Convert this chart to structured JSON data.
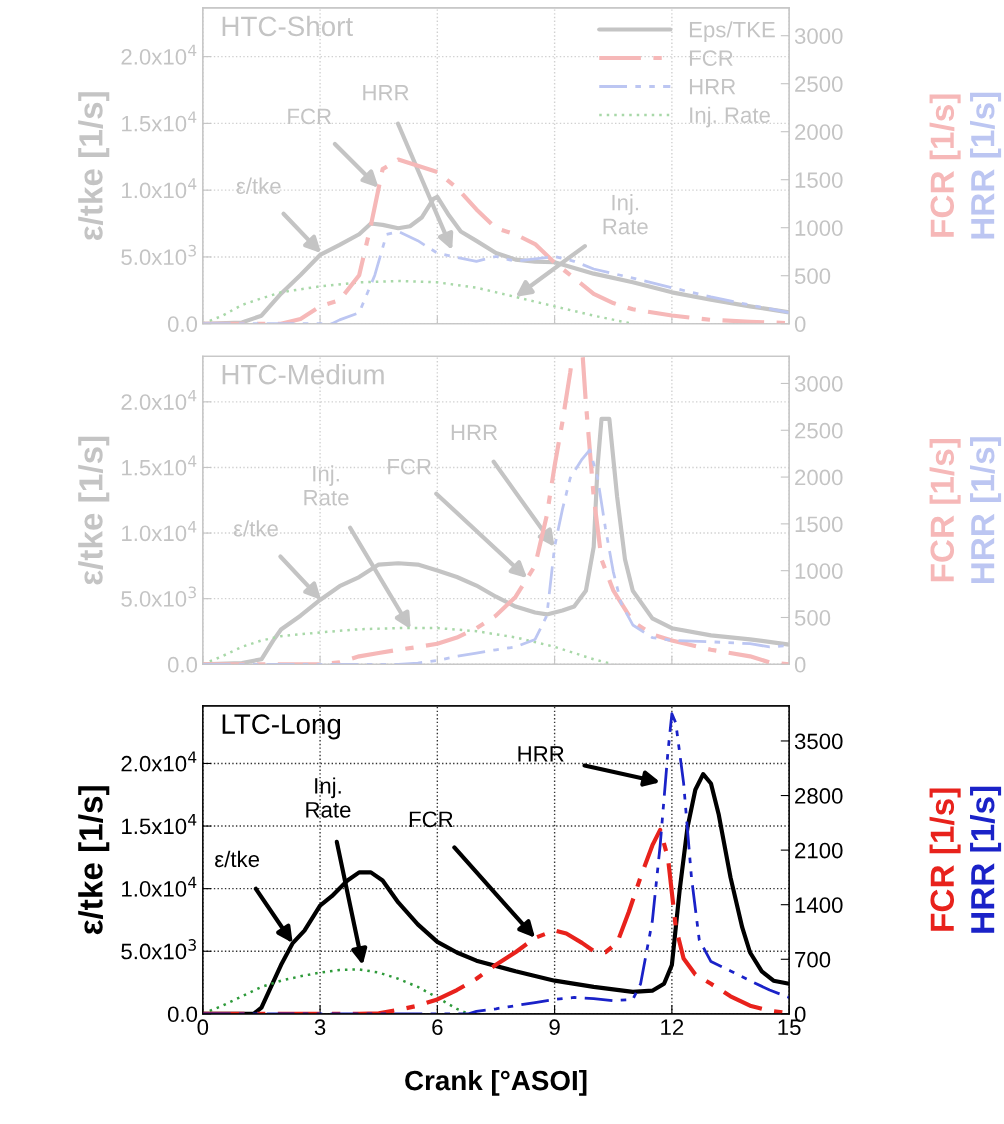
{
  "chart_data": [
    {
      "type": "line",
      "title": "HTC-Short",
      "ylabel": "ε/tke [1/s]",
      "y2label": "FCR [1/s]",
      "y3label": "HRR [1/s]",
      "xlim": [
        0,
        15
      ],
      "xticks": [
        0,
        3,
        6,
        9,
        12,
        15
      ],
      "ylim": [
        0,
        23650
      ],
      "yticks": [
        {
          "value": 0,
          "label": "0.0"
        },
        {
          "value": 5000,
          "label": "5.0x10$^{3}$"
        },
        {
          "value": 10000,
          "label": "1.0x10$^{4}$"
        },
        {
          "value": 15000,
          "label": "1.5x10$^{4}$"
        },
        {
          "value": 20000,
          "label": "2.0x10$^{4}$"
        }
      ],
      "y2lim": [
        0,
        3290
      ],
      "y2ticks": [
        0,
        500,
        1000,
        1500,
        2000,
        2500,
        3000
      ],
      "grid": true,
      "legend": "top right",
      "tick_labels": "y",
      "series": [
        {
          "name": "Eps/TKE",
          "color": "#c4c4c4",
          "line_style": "solid",
          "x": [
            0,
            1,
            1.5,
            2,
            2.5,
            3,
            3.5,
            4,
            4.3,
            4.6,
            5,
            5.3,
            5.6,
            5.9,
            6,
            6.3,
            6.6,
            7,
            7.5,
            8,
            8.5,
            9,
            10,
            11,
            12,
            13,
            14,
            15
          ],
          "values": [
            0,
            93,
            600,
            2250,
            3650,
            5150,
            5900,
            6700,
            7500,
            7400,
            7150,
            7300,
            7950,
            9350,
            9500,
            8100,
            6900,
            6200,
            5300,
            4800,
            4650,
            4600,
            3750,
            3100,
            2350,
            1800,
            1300,
            850
          ]
        },
        {
          "name": "FCR",
          "color": "#f6b8b8",
          "line_style": "dashdot",
          "axis": "y2",
          "x": [
            0,
            2,
            2.5,
            3,
            3.5,
            4,
            4.3,
            4.6,
            5,
            5.5,
            6,
            6.5,
            7,
            7.5,
            8,
            8.5,
            9,
            9.5,
            10,
            10.5,
            11,
            12,
            13,
            14,
            15
          ],
          "values": [
            0,
            0,
            50,
            180,
            245,
            505,
            1025,
            1610,
            1710,
            1645,
            1580,
            1415,
            1190,
            995,
            930,
            830,
            635,
            475,
            310,
            215,
            150,
            85,
            40,
            20,
            6
          ]
        },
        {
          "name": "HRR",
          "color": "#bcc6f2",
          "line_style": "dashdotdot",
          "axis": "y2",
          "x": [
            0,
            3.3,
            3.5,
            4,
            4.4,
            4.7,
            5,
            5.5,
            6,
            6.5,
            7,
            7.5,
            8,
            9,
            9.5,
            10,
            11,
            12,
            13,
            14,
            15
          ],
          "values": [
            0,
            0,
            40,
            115,
            505,
            930,
            960,
            865,
            735,
            690,
            650,
            700,
            650,
            700,
            650,
            570,
            475,
            375,
            280,
            195,
            115
          ]
        },
        {
          "name": "Inj. Rate",
          "color": "#a8d8a8",
          "line_style": "dotted",
          "x": [
            0,
            0.5,
            1,
            1.5,
            2,
            3,
            4,
            5,
            6,
            7,
            8,
            9,
            10,
            11
          ],
          "values": [
            0,
            600,
            1400,
            1900,
            2350,
            2800,
            3100,
            3200,
            3100,
            2700,
            2000,
            1300,
            600,
            0
          ]
        }
      ],
      "annotations": [
        {
          "text": "ε/tke",
          "x": 3.03,
          "y": 5280
        },
        {
          "text": "FCR",
          "x": 4.5,
          "y": 10180
        },
        {
          "text": "HRR",
          "x": 6.38,
          "y": 5510
        },
        {
          "text": "Inj.\nRate",
          "x": 8,
          "y": 2000
        }
      ]
    },
    {
      "type": "line",
      "title": "HTC-Medium",
      "ylabel": "ε/tke [1/s]",
      "y2label": "FCR [1/s]",
      "y3label": "HRR [1/s]",
      "xlim": [
        0,
        15
      ],
      "xticks": [
        0,
        3,
        6,
        9,
        12,
        15
      ],
      "ylim": [
        0,
        23470
      ],
      "yticks": [
        {
          "value": 0,
          "label": "0.0"
        },
        {
          "value": 5000,
          "label": "5.0x10$^{3}$"
        },
        {
          "value": 10000,
          "label": "1.0x10$^{4}$"
        },
        {
          "value": 15000,
          "label": "1.5x10$^{4}$"
        },
        {
          "value": 20000,
          "label": "2.0x10$^{4}$"
        }
      ],
      "y2lim": [
        0,
        3290
      ],
      "y2ticks": [
        0,
        500,
        1000,
        1500,
        2000,
        2500,
        3000
      ],
      "grid": true,
      "tick_labels": "y",
      "series": [
        {
          "color": "#c4c4c4",
          "line_style": "solid",
          "x": [
            0,
            1,
            1.5,
            1.8,
            2,
            2.5,
            3,
            3.5,
            4,
            4.5,
            5,
            5.5,
            6,
            6.5,
            7,
            7.5,
            8,
            8.5,
            8.8,
            9.2,
            9.5,
            9.8,
            10,
            10.1,
            10.2,
            10.4,
            10.6,
            10.8,
            11,
            11.5,
            12,
            13,
            14,
            15
          ],
          "values": [
            0,
            95,
            380,
            1800,
            2650,
            3700,
            4900,
            5950,
            6650,
            7600,
            7700,
            7600,
            7150,
            6650,
            6000,
            5150,
            4400,
            3950,
            3800,
            4100,
            4400,
            5600,
            8950,
            15150,
            18700,
            18700,
            12750,
            8000,
            5600,
            3500,
            2750,
            2200,
            1900,
            1500
          ]
        },
        {
          "color": "#f6b8b8",
          "line_style": "dashdot",
          "axis": "y2",
          "x": [
            0,
            3,
            3.5,
            4,
            4.5,
            5,
            5.5,
            6,
            6.5,
            7,
            7.5,
            8,
            8.3,
            8.5,
            8.8,
            9,
            9.2,
            9.4,
            9.45,
            9.6,
            9.72,
            9.8,
            10,
            10.2,
            10.5,
            11,
            11.5,
            12,
            13,
            14,
            14.5,
            15
          ],
          "values": [
            0,
            0,
            20,
            85,
            120,
            155,
            185,
            220,
            285,
            385,
            520,
            720,
            920,
            1055,
            1590,
            2120,
            2590,
            3120,
            3280,
            null,
            3280,
            2790,
            1790,
            1120,
            790,
            455,
            320,
            255,
            155,
            85,
            20,
            0
          ]
        },
        {
          "color": "#bcc6f2",
          "line_style": "dashdotdot",
          "axis": "y2",
          "x": [
            0,
            5,
            5.5,
            6,
            6.5,
            7,
            7.5,
            8,
            8.5,
            8.8,
            9,
            9.2,
            9.4,
            9.7,
            9.9,
            10.1,
            10.3,
            10.5,
            10.7,
            11,
            11.5,
            12,
            13,
            14,
            14.5,
            15
          ],
          "values": [
            0,
            0,
            13,
            40,
            85,
            120,
            155,
            185,
            265,
            520,
            1255,
            1655,
            1990,
            2190,
            2290,
            1990,
            1455,
            990,
            655,
            420,
            285,
            255,
            240,
            220,
            185,
            200
          ]
        },
        {
          "color": "#a8d8a8",
          "line_style": "dotted",
          "x": [
            0,
            0.5,
            1,
            1.5,
            2,
            3,
            4,
            5,
            6,
            7,
            8,
            9,
            9.5,
            10,
            10.5
          ],
          "values": [
            0,
            620,
            1330,
            1810,
            2140,
            2430,
            2670,
            2760,
            2760,
            2520,
            2050,
            1330,
            860,
            380,
            0
          ]
        }
      ],
      "annotations": [
        {
          "text": "ε/tke",
          "x": 3.03,
          "y": 4900
        },
        {
          "text": "Inj.\nRate",
          "x": 5.32,
          "y": 2670
        },
        {
          "text": "FCR",
          "x": 8.3,
          "y": 6560
        },
        {
          "text": "HRR",
          "x": 9,
          "y": 8950
        }
      ]
    },
    {
      "type": "line",
      "title": "LTC-Long",
      "xlabel": "Crank [°ASOI]",
      "ylabel": "ε/tke [1/s]",
      "y2label": "FCR [1/s]",
      "y3label": "HRR [1/s]",
      "xlim": [
        0,
        15
      ],
      "xticks": [
        0,
        3,
        6,
        9,
        12,
        15
      ],
      "ylim": [
        0,
        24600
      ],
      "yticks": [
        {
          "value": 0,
          "label": "0.0"
        },
        {
          "value": 5000,
          "label": "5.0x10$^{3}$"
        },
        {
          "value": 10000,
          "label": "1.0x10$^{4}$"
        },
        {
          "value": 15000,
          "label": "1.5x10$^{4}$"
        },
        {
          "value": 20000,
          "label": "2.0x10$^{4}$"
        }
      ],
      "y2lim": [
        0,
        3950
      ],
      "y2ticks": [
        0,
        700,
        1400,
        2100,
        2800,
        3500
      ],
      "grid": true,
      "series": [
        {
          "color": "#000000",
          "line_style": "solid",
          "x": [
            0,
            1.3,
            1.5,
            2,
            2.3,
            2.6,
            3,
            3.3,
            3.7,
            4,
            4.3,
            4.6,
            5,
            5.5,
            6,
            6.5,
            7,
            8,
            9,
            10,
            11,
            11.5,
            11.8,
            12,
            12.2,
            12.4,
            12.6,
            12.8,
            13,
            13.2,
            13.5,
            13.8,
            14,
            14.3,
            14.6,
            15
          ],
          "values": [
            0,
            0,
            500,
            3900,
            5650,
            6650,
            8650,
            9400,
            10650,
            11300,
            11300,
            10650,
            8900,
            7150,
            5750,
            4900,
            4250,
            3400,
            2650,
            2150,
            1750,
            1850,
            2400,
            3900,
            9900,
            14900,
            17900,
            19150,
            18400,
            15900,
            10900,
            6900,
            4900,
            3400,
            2650,
            2400
          ]
        },
        {
          "color": "#e8221c",
          "line_style": "dashdot",
          "axis": "y2",
          "x": [
            0,
            4,
            4.5,
            5,
            5.5,
            6,
            6.5,
            7,
            7.5,
            8,
            8.5,
            9,
            9.3,
            9.7,
            10,
            10.3,
            10.6,
            10.9,
            11.2,
            11.5,
            11.7,
            11.9,
            12.1,
            12.3,
            12.6,
            13,
            13.5,
            14,
            14.5,
            15
          ],
          "values": [
            0,
            0,
            8,
            50,
            105,
            185,
            305,
            450,
            630,
            790,
            975,
            1070,
            1030,
            910,
            805,
            790,
            910,
            1310,
            1755,
            2160,
            2360,
            2000,
            1110,
            710,
            505,
            385,
            225,
            105,
            40,
            8
          ]
        },
        {
          "color": "#1a22c8",
          "line_style": "dashdotdot",
          "axis": "y2",
          "x": [
            0,
            6.8,
            7,
            7.5,
            8,
            8.5,
            9,
            9.5,
            10,
            10.5,
            11,
            11.2,
            11.5,
            11.7,
            11.9,
            12,
            12.1,
            12.3,
            12.5,
            12.7,
            13,
            13.5,
            14,
            14.5,
            15
          ],
          "values": [
            0,
            0,
            32,
            65,
            105,
            145,
            185,
            210,
            195,
            170,
            185,
            385,
            1190,
            2160,
            3365,
            3850,
            3730,
            2960,
            1755,
            950,
            670,
            550,
            425,
            305,
            210
          ]
        },
        {
          "color": "#2e9a3a",
          "line_style": "dotted",
          "x": [
            0,
            0.5,
            1,
            1.5,
            2,
            2.5,
            3,
            3.5,
            4,
            4.5,
            5,
            5.5,
            6,
            6.5,
            6.8
          ],
          "values": [
            0,
            650,
            1400,
            2150,
            2650,
            3000,
            3300,
            3500,
            3550,
            3300,
            2800,
            2150,
            1300,
            400,
            0
          ]
        }
      ],
      "annotations": [
        {
          "text": "ε/tke",
          "x": 2.3,
          "y": 5650
        },
        {
          "text": "Inj.\nRate",
          "x": 4.09,
          "y": 3900
        },
        {
          "text": "FCR",
          "x": 8.5,
          "y": 6070
        },
        {
          "text": "HRR",
          "x": 11.7,
          "y": 18500
        }
      ]
    }
  ]
}
